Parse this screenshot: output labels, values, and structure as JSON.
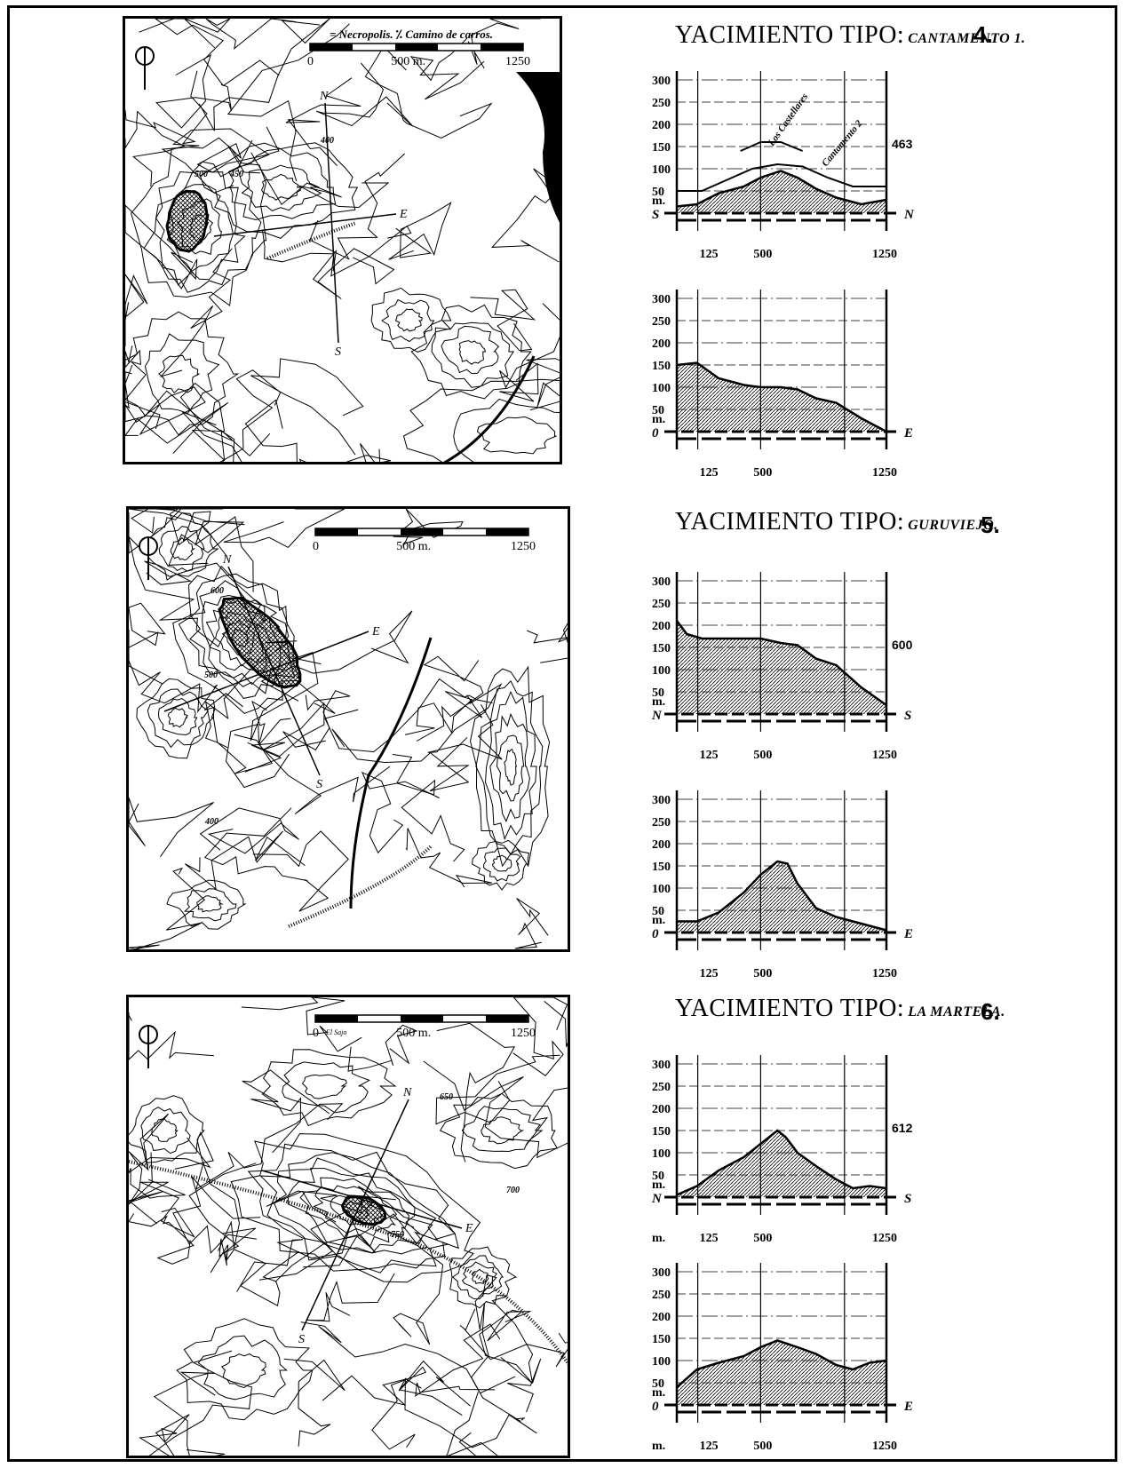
{
  "sites": [
    {
      "header_prefix": "YACIMIENTO TIPO:",
      "site_name": "CANTAMENTO 1.",
      "number": "4.",
      "legend": "= Necropolis. ⁒ Camino de carros.",
      "scale": {
        "start": "0",
        "mid": "500 m.",
        "end": "1250"
      },
      "map_labels": {
        "north": "N",
        "south": "S",
        "east": "E",
        "contour_a": "400",
        "contour_b": "500",
        "contour_c": "450"
      },
      "profiles": [
        {
          "left_dir": "S",
          "right_dir": "N",
          "unit": "m.",
          "y_ticks": [
            "300",
            "250",
            "200",
            "150",
            "100",
            "50"
          ],
          "x_ticks": [
            "125",
            "500",
            "1250"
          ],
          "end_label": "463",
          "annotations": [
            "Los Castellares",
            "Cantamento 2"
          ]
        },
        {
          "left_dir": "0",
          "right_dir": "E",
          "unit": "m.",
          "y_ticks": [
            "300",
            "250",
            "200",
            "150",
            "100",
            "50"
          ],
          "x_ticks": [
            "125",
            "500",
            "1250"
          ],
          "end_label": ""
        }
      ]
    },
    {
      "header_prefix": "YACIMIENTO TIPO:",
      "site_name": "GURUVIEJO.",
      "number": "5.",
      "scale": {
        "start": "0",
        "mid": "500 m.",
        "end": "1250"
      },
      "map_labels": {
        "north": "N",
        "south": "S",
        "east": "E",
        "contour_a": "600",
        "contour_b": "500",
        "contour_c": "400"
      },
      "profiles": [
        {
          "left_dir": "N",
          "right_dir": "S",
          "unit": "m.",
          "y_ticks": [
            "300",
            "250",
            "200",
            "150",
            "100",
            "50"
          ],
          "x_ticks": [
            "125",
            "500",
            "1250"
          ],
          "end_label": "600"
        },
        {
          "left_dir": "0",
          "right_dir": "E",
          "unit": "m.",
          "y_ticks": [
            "300",
            "250",
            "200",
            "150",
            "100",
            "50"
          ],
          "x_ticks": [
            "125",
            "500",
            "1250"
          ],
          "end_label": ""
        }
      ]
    },
    {
      "header_prefix": "YACIMIENTO TIPO:",
      "site_name": "LA MARTELA.",
      "number": "6.",
      "scale": {
        "start": "0",
        "mid": "500 m.",
        "end": "1250",
        "extra": "El Sajo"
      },
      "map_labels": {
        "north": "N",
        "south": "S",
        "east": "E",
        "contour_a": "650",
        "contour_b": "700",
        "contour_c": "750"
      },
      "profiles": [
        {
          "left_dir": "N",
          "right_dir": "S",
          "unit": "m.",
          "y_ticks": [
            "300",
            "250",
            "200",
            "150",
            "100",
            "50"
          ],
          "x_ticks": [
            "m.",
            "125",
            "500",
            "1250"
          ],
          "end_label": "612"
        },
        {
          "left_dir": "0",
          "right_dir": "E",
          "unit": "m.",
          "y_ticks": [
            "300",
            "250",
            "200",
            "150",
            "100",
            "50"
          ],
          "x_ticks": [
            "m.",
            "125",
            "500",
            "1250"
          ],
          "end_label": ""
        }
      ]
    }
  ],
  "profile_shapes": [
    [
      [
        0,
        15
      ],
      [
        120,
        20
      ],
      [
        250,
        45
      ],
      [
        400,
        60
      ],
      [
        500,
        80
      ],
      [
        620,
        95
      ],
      [
        720,
        80
      ],
      [
        830,
        55
      ],
      [
        950,
        35
      ],
      [
        1100,
        20
      ],
      [
        1250,
        30
      ]
    ],
    [
      [
        0,
        150
      ],
      [
        120,
        155
      ],
      [
        250,
        120
      ],
      [
        400,
        105
      ],
      [
        500,
        100
      ],
      [
        620,
        100
      ],
      [
        720,
        95
      ],
      [
        830,
        75
      ],
      [
        950,
        65
      ],
      [
        1100,
        30
      ],
      [
        1250,
        0
      ]
    ],
    [
      [
        0,
        210
      ],
      [
        60,
        180
      ],
      [
        150,
        170
      ],
      [
        300,
        170
      ],
      [
        500,
        170
      ],
      [
        620,
        160
      ],
      [
        720,
        155
      ],
      [
        830,
        125
      ],
      [
        950,
        110
      ],
      [
        1100,
        60
      ],
      [
        1250,
        20
      ]
    ],
    [
      [
        0,
        25
      ],
      [
        120,
        25
      ],
      [
        250,
        45
      ],
      [
        400,
        90
      ],
      [
        500,
        130
      ],
      [
        600,
        160
      ],
      [
        660,
        155
      ],
      [
        720,
        110
      ],
      [
        830,
        55
      ],
      [
        950,
        35
      ],
      [
        1100,
        20
      ],
      [
        1250,
        5
      ]
    ],
    [
      [
        0,
        5
      ],
      [
        120,
        25
      ],
      [
        250,
        60
      ],
      [
        400,
        90
      ],
      [
        500,
        120
      ],
      [
        600,
        150
      ],
      [
        650,
        135
      ],
      [
        720,
        100
      ],
      [
        830,
        70
      ],
      [
        950,
        40
      ],
      [
        1050,
        20
      ],
      [
        1150,
        25
      ],
      [
        1250,
        20
      ]
    ],
    [
      [
        0,
        40
      ],
      [
        120,
        80
      ],
      [
        250,
        95
      ],
      [
        400,
        110
      ],
      [
        500,
        130
      ],
      [
        600,
        145
      ],
      [
        720,
        130
      ],
      [
        830,
        115
      ],
      [
        950,
        90
      ],
      [
        1050,
        80
      ],
      [
        1150,
        95
      ],
      [
        1250,
        100
      ]
    ]
  ],
  "upper_line_profile1": [
    [
      0,
      50
    ],
    [
      150,
      50
    ],
    [
      300,
      75
    ],
    [
      450,
      100
    ],
    [
      600,
      110
    ],
    [
      750,
      105
    ],
    [
      900,
      80
    ],
    [
      1050,
      60
    ],
    [
      1250,
      60
    ]
  ],
  "upper_line_profile1b": [
    [
      380,
      140
    ],
    [
      500,
      160
    ],
    [
      620,
      160
    ],
    [
      750,
      140
    ]
  ]
}
